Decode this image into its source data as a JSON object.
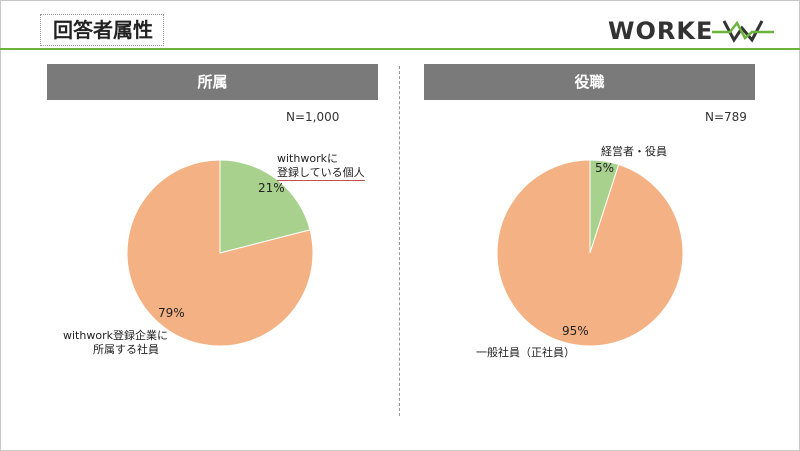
{
  "page": {
    "title": "回答者属性",
    "logo_text": "WORKEN"
  },
  "chart_data": [
    {
      "type": "pie",
      "title": "所属",
      "n_label": "N=1,000",
      "slices": [
        {
          "label": "withworkに登録している個人",
          "label_lines": [
            "withworkに",
            "登録している個人"
          ],
          "value": 21,
          "pct_label": "21%",
          "color": "#a9d18e"
        },
        {
          "label": "withwork登録企業に所属する社員",
          "label_lines": [
            "withwork登録企業に",
            "所属する社員"
          ],
          "value": 79,
          "pct_label": "79%",
          "color": "#f4b183"
        }
      ]
    },
    {
      "type": "pie",
      "title": "役職",
      "n_label": "N=789",
      "slices": [
        {
          "label": "経営者・役員",
          "label_lines": [
            "経営者・役員"
          ],
          "value": 5,
          "pct_label": "5%",
          "color": "#a9d18e"
        },
        {
          "label": "一般社員（正社員）",
          "label_lines": [
            "一般社員（正社員）"
          ],
          "value": 95,
          "pct_label": "95%",
          "color": "#f4b183"
        }
      ]
    }
  ]
}
